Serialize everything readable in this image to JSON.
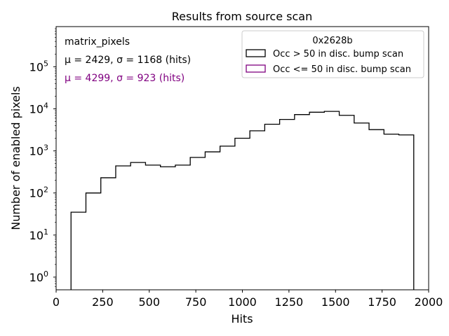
{
  "chart_data": {
    "type": "histogram",
    "title": "Results from source scan",
    "xlabel": "Hits",
    "ylabel": "Number of enabled pixels",
    "xlim": [
      0,
      2000
    ],
    "ylim": [
      0.5,
      900000
    ],
    "yscale": "log",
    "grid": false,
    "xticks": [
      {
        "value": 0,
        "label": "0"
      },
      {
        "value": 250,
        "label": "250"
      },
      {
        "value": 500,
        "label": "500"
      },
      {
        "value": 750,
        "label": "750"
      },
      {
        "value": 1000,
        "label": "1000"
      },
      {
        "value": 1250,
        "label": "1250"
      },
      {
        "value": 1500,
        "label": "1500"
      },
      {
        "value": 1750,
        "label": "1750"
      },
      {
        "value": 2000,
        "label": "2000"
      }
    ],
    "yticks": [
      {
        "value": 1,
        "base": "10",
        "exp": "0"
      },
      {
        "value": 10,
        "base": "10",
        "exp": "1"
      },
      {
        "value": 100,
        "base": "10",
        "exp": "2"
      },
      {
        "value": 1000,
        "base": "10",
        "exp": "3"
      },
      {
        "value": 10000,
        "base": "10",
        "exp": "4"
      },
      {
        "value": 100000,
        "base": "10",
        "exp": "5"
      }
    ],
    "bin_edges": [
      80,
      160,
      240,
      320,
      400,
      480,
      560,
      640,
      720,
      800,
      880,
      960,
      1040,
      1120,
      1200,
      1280,
      1360,
      1440,
      1520,
      1600,
      1680,
      1760,
      1840,
      1920
    ],
    "series": [
      {
        "name": "Occ > 50 in disc. bump scan",
        "color": "#000000",
        "values": [
          35,
          100,
          230,
          440,
          530,
          460,
          420,
          460,
          700,
          950,
          1300,
          2000,
          3000,
          4300,
          5600,
          7300,
          8300,
          8700,
          7000,
          4600,
          3200,
          2500,
          2400
        ]
      },
      {
        "name": "Occ <= 50 in disc. bump scan",
        "color": "#800080",
        "values": []
      }
    ],
    "legend": {
      "title": "0x2628b",
      "placement": "upper-right"
    },
    "annotations": [
      {
        "name": "dataset-label",
        "color": "#000000",
        "text": "matrix_pixels"
      },
      {
        "name": "stats-selected",
        "color": "#000000",
        "text": "μ = 2429, σ = 1168 (hits)",
        "mu": "2429",
        "sigma": "1168",
        "units": "(hits)"
      },
      {
        "name": "stats-rejected",
        "color": "#800080",
        "text": "μ = 4299, σ = 923 (hits)",
        "mu": "4299",
        "sigma": "923",
        "units": "(hits)"
      }
    ]
  }
}
